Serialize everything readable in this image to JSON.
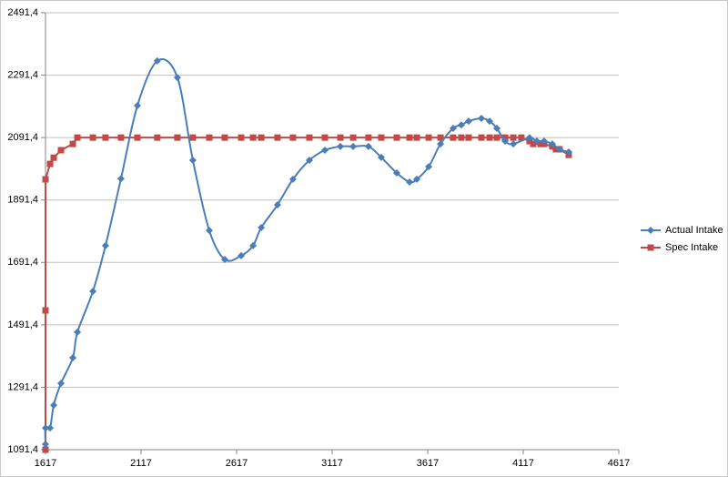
{
  "chart_data": {
    "type": "line",
    "xlim": [
      1617,
      4617
    ],
    "xticks": [
      1617,
      2117,
      2617,
      3117,
      3617,
      4117,
      4617
    ],
    "ylim": [
      1091.4,
      2491.4
    ],
    "yticks": [
      {
        "value": 1091.4,
        "label": "1091,4"
      },
      {
        "value": 1291.4,
        "label": "1291,4"
      },
      {
        "value": 1491.4,
        "label": "1491,4"
      },
      {
        "value": 1691.4,
        "label": "1691,4"
      },
      {
        "value": 1891.4,
        "label": "1891,4"
      },
      {
        "value": 2091.4,
        "label": "2091,4"
      },
      {
        "value": 2291.4,
        "label": "2291,4"
      },
      {
        "value": 2491.4,
        "label": "2491,4"
      }
    ],
    "grid": true,
    "legend": "right",
    "series": [
      {
        "name": "Actual Intake",
        "color": "#4a7ebb",
        "marker": "diamond",
        "smooth": true,
        "x": [
          1617,
          1617,
          1641,
          1660,
          1698,
          1760,
          1784,
          1865,
          1931,
          2012,
          2098,
          2202,
          2307,
          2388,
          2474,
          2555,
          2641,
          2703,
          2746,
          2831,
          2912,
          2998,
          3079,
          3160,
          3227,
          3307,
          3374,
          3455,
          3522,
          3560,
          3622,
          3684,
          3750,
          3793,
          3831,
          3898,
          3941,
          3979,
          4022,
          4065,
          4150,
          4188,
          4226,
          4269,
          4307,
          4355
        ],
        "values": [
          1109,
          1161,
          1161,
          1234,
          1304,
          1386,
          1468,
          1599,
          1745,
          1960,
          2194,
          2337,
          2284,
          2019,
          1794,
          1701,
          1713,
          1745,
          1803,
          1876,
          1958,
          2019,
          2051,
          2063,
          2063,
          2063,
          2028,
          1978,
          1949,
          1958,
          1998,
          2071,
          2121,
          2132,
          2144,
          2153,
          2144,
          2121,
          2080,
          2071,
          2091,
          2080,
          2080,
          2071,
          2054,
          2045
        ]
      },
      {
        "name": "Spec Intake",
        "color": "#be4b48",
        "marker": "square",
        "smooth": false,
        "x": [
          1617,
          1617,
          1617,
          1641,
          1660,
          1698,
          1760,
          1784,
          1865,
          1931,
          2012,
          2098,
          2202,
          2307,
          2388,
          2474,
          2555,
          2641,
          2703,
          2746,
          2831,
          2912,
          2998,
          3079,
          3160,
          3227,
          3307,
          3374,
          3455,
          3522,
          3560,
          3622,
          3684,
          3750,
          3793,
          3831,
          3898,
          3941,
          3979,
          4022,
          4065,
          4107,
          4150,
          4169,
          4207,
          4226,
          4269,
          4288,
          4307,
          4355
        ],
        "values": [
          1091.4,
          1537.6,
          1957.5,
          2007,
          2027,
          2051,
          2071,
          2091.4,
          2091.4,
          2091.4,
          2091.4,
          2091.4,
          2091.4,
          2091.4,
          2091.4,
          2091.4,
          2091.4,
          2091.4,
          2091.4,
          2091.4,
          2091.4,
          2091.4,
          2091.4,
          2091.4,
          2091.4,
          2091.4,
          2091.4,
          2091.4,
          2091.4,
          2091.4,
          2091.4,
          2091.4,
          2091.4,
          2091.4,
          2091.4,
          2091.4,
          2091.4,
          2091.4,
          2091.4,
          2091.4,
          2091.4,
          2091.4,
          2080,
          2071,
          2071,
          2071,
          2063,
          2054,
          2054,
          2036
        ]
      }
    ]
  }
}
